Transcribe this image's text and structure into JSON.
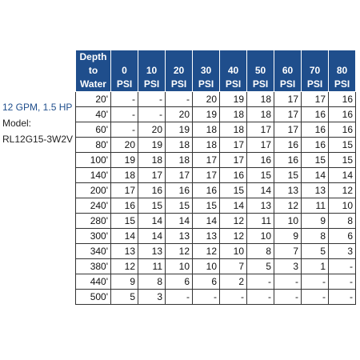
{
  "side_info": {
    "flow_power": "12 GPM, 1.5 HP",
    "model_label": "Model:",
    "model_number": "RL12G15-3W2V"
  },
  "table": {
    "headers": [
      [
        "Depth",
        "to",
        "Water"
      ],
      [
        "0",
        "PSI"
      ],
      [
        "10",
        "PSI"
      ],
      [
        "20",
        "PSI"
      ],
      [
        "30",
        "PSI"
      ],
      [
        "40",
        "PSI"
      ],
      [
        "50",
        "PSI"
      ],
      [
        "60",
        "PSI"
      ],
      [
        "70",
        "PSI"
      ],
      [
        "80",
        "PSI"
      ]
    ],
    "rows": [
      [
        "20'",
        "-",
        "-",
        "-",
        "20",
        "19",
        "18",
        "17",
        "17",
        "16"
      ],
      [
        "40'",
        "-",
        "-",
        "20",
        "19",
        "18",
        "18",
        "17",
        "16",
        "16"
      ],
      [
        "60'",
        "-",
        "20",
        "19",
        "18",
        "18",
        "17",
        "17",
        "16",
        "16"
      ],
      [
        "80'",
        "20",
        "19",
        "18",
        "18",
        "17",
        "17",
        "16",
        "16",
        "15"
      ],
      [
        "100'",
        "19",
        "18",
        "18",
        "17",
        "17",
        "16",
        "16",
        "15",
        "15"
      ],
      [
        "140'",
        "18",
        "17",
        "17",
        "17",
        "16",
        "15",
        "15",
        "14",
        "14"
      ],
      [
        "200'",
        "17",
        "16",
        "16",
        "16",
        "15",
        "14",
        "13",
        "13",
        "12"
      ],
      [
        "240'",
        "16",
        "15",
        "15",
        "15",
        "14",
        "13",
        "12",
        "11",
        "10"
      ],
      [
        "280'",
        "15",
        "14",
        "14",
        "14",
        "12",
        "11",
        "10",
        "9",
        "8"
      ],
      [
        "300'",
        "14",
        "14",
        "13",
        "13",
        "12",
        "10",
        "9",
        "8",
        "6"
      ],
      [
        "340'",
        "13",
        "13",
        "12",
        "12",
        "10",
        "8",
        "7",
        "5",
        "3"
      ],
      [
        "380'",
        "12",
        "11",
        "10",
        "10",
        "7",
        "5",
        "3",
        "1",
        "-"
      ],
      [
        "440'",
        "9",
        "8",
        "6",
        "6",
        "2",
        "-",
        "-",
        "-",
        "-"
      ],
      [
        "500'",
        "5",
        "3",
        "-",
        "-",
        "-",
        "-",
        "-",
        "-",
        "-"
      ]
    ]
  },
  "colors": {
    "header_bg": "#1f4e8c",
    "side_title": "#1f4e8c"
  }
}
